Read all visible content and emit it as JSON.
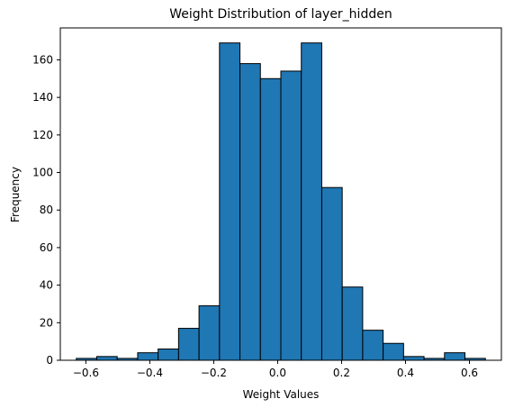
{
  "chart_data": {
    "type": "bar",
    "title": "Weight Distribution of layer_hidden",
    "xlabel": "Weight Values",
    "ylabel": "Frequency",
    "xlim": [
      -0.68,
      0.7
    ],
    "ylim": [
      0,
      177
    ],
    "x_ticks": [
      -0.6,
      -0.4,
      -0.2,
      0.0,
      0.2,
      0.4,
      0.6
    ],
    "x_tick_labels": [
      "−0.6",
      "−0.4",
      "−0.2",
      "0.0",
      "0.2",
      "0.4",
      "0.6"
    ],
    "y_ticks": [
      0,
      20,
      40,
      60,
      80,
      100,
      120,
      140,
      160
    ],
    "y_tick_labels": [
      "0",
      "20",
      "40",
      "60",
      "80",
      "100",
      "120",
      "140",
      "160"
    ],
    "bin_edges": [
      -0.63,
      -0.566,
      -0.502,
      -0.438,
      -0.374,
      -0.31,
      -0.246,
      -0.182,
      -0.118,
      -0.054,
      0.01,
      0.074,
      0.138,
      0.202,
      0.266,
      0.33,
      0.394,
      0.458,
      0.522,
      0.586,
      0.65
    ],
    "values": [
      1,
      2,
      1,
      4,
      6,
      17,
      29,
      169,
      158,
      150,
      154,
      169,
      92,
      39,
      16,
      9,
      2,
      1,
      4,
      1
    ],
    "bar_color": "#1f77b4",
    "edge_color": "#000000",
    "grid": false,
    "legend": "none"
  }
}
